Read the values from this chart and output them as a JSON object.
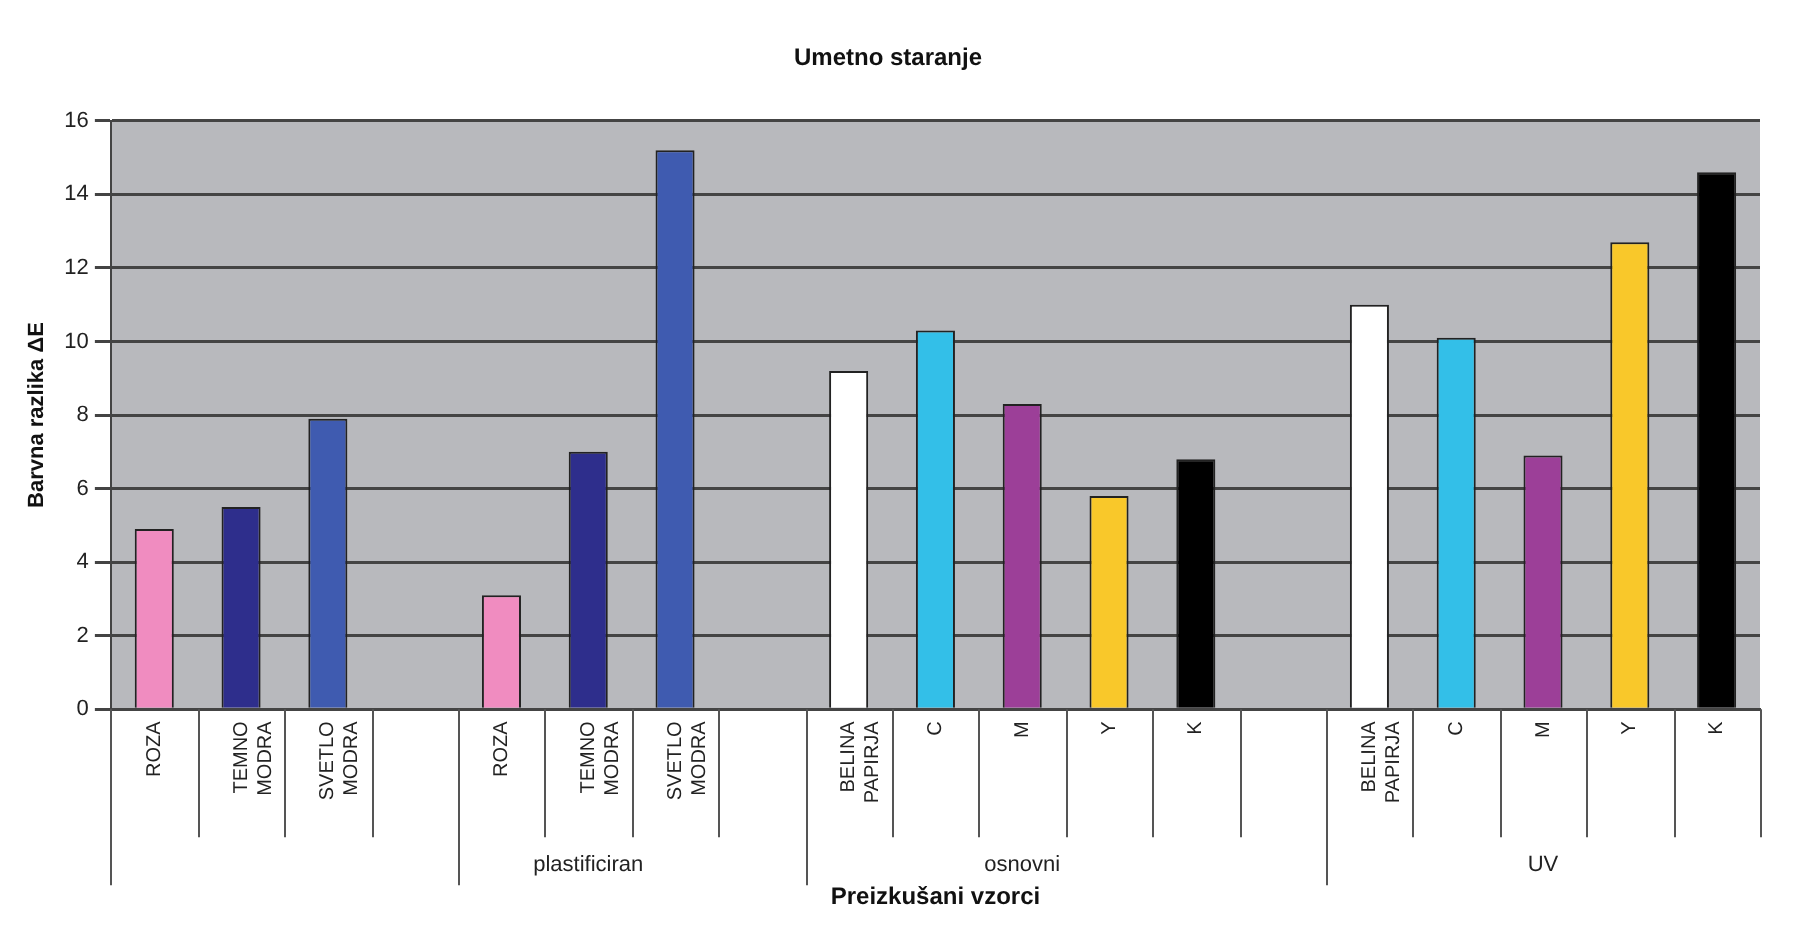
{
  "chart_data": {
    "type": "bar",
    "title": "Umetno staranje",
    "xlabel": "Preizkušani vzorci",
    "ylabel": "Barvna razlika ΔE",
    "categories": [
      "ROZA",
      "TEMNO MODRA",
      "SVETLO MODRA",
      null,
      "ROZA",
      "TEMNO MODRA",
      "SVETLO MODRA",
      null,
      "BELINA PAPIRJA",
      "C",
      "M",
      "Y",
      "K",
      null,
      "BELINA PAPIRJA",
      "C",
      "M",
      "Y",
      "K"
    ],
    "values": [
      4.9,
      5.5,
      7.9,
      null,
      3.1,
      7.0,
      15.2,
      null,
      9.2,
      10.3,
      8.3,
      5.8,
      6.8,
      null,
      11.0,
      10.1,
      6.9,
      12.7,
      14.6
    ],
    "colors": [
      "#f08cc0",
      "#2e2e8c",
      "#3f5bb0",
      null,
      "#f08cc0",
      "#2e2e8c",
      "#3f5bb0",
      null,
      "#ffffff",
      "#33bfe8",
      "#9c3f98",
      "#f9c82a",
      "#000000",
      null,
      "#ffffff",
      "#33bfe8",
      "#9c3f98",
      "#f9c82a",
      "#000000"
    ],
    "annotations": [
      "plastificiran",
      "osnovni",
      "UV"
    ],
    "ylim": [
      0,
      16
    ],
    "yticks": [
      0,
      2,
      4,
      6,
      8,
      10,
      12,
      14,
      16
    ],
    "grid": "y",
    "legend": false
  }
}
